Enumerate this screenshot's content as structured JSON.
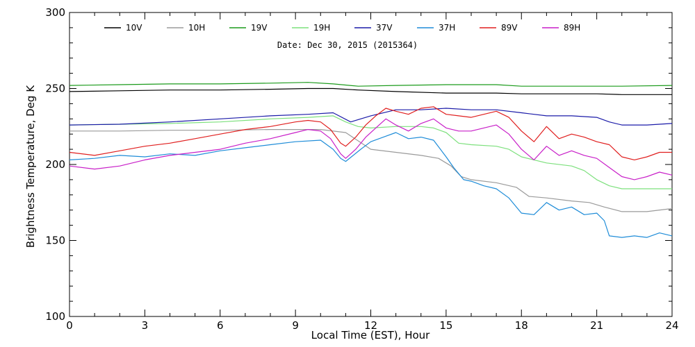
{
  "chart_data": {
    "type": "line",
    "title": "",
    "annotation": "Date: Dec 30, 2015 (2015364)",
    "xlabel": "Local Time (EST), Hour",
    "ylabel": "Brightness Temperature, Deg K",
    "xlim": [
      0,
      24
    ],
    "ylim": [
      100,
      300
    ],
    "x_ticks": [
      0,
      3,
      6,
      9,
      12,
      15,
      18,
      21,
      24
    ],
    "y_ticks": [
      100,
      150,
      200,
      250,
      300
    ],
    "grid": false,
    "legend_position": "top",
    "series": [
      {
        "name": "10V",
        "color": "#000000",
        "x": [
          0,
          2,
          4,
          6,
          8,
          9.5,
          10.5,
          11.5,
          13,
          15,
          17,
          18,
          19,
          21,
          22,
          24
        ],
        "y": [
          248,
          248.5,
          249,
          249,
          249.5,
          250,
          250,
          249,
          248,
          247,
          247,
          246.5,
          246.5,
          246.5,
          246,
          246
        ]
      },
      {
        "name": "10H",
        "color": "#9a9a9a",
        "x": [
          0,
          2,
          4,
          6,
          8,
          10,
          11,
          12,
          13,
          14,
          14.7,
          15.2,
          15.6,
          16,
          17,
          17.8,
          18.3,
          19,
          20,
          20.7,
          21.3,
          22,
          23,
          24
        ],
        "y": [
          222,
          222,
          222.5,
          222.5,
          223,
          223,
          221,
          210,
          208,
          206,
          204,
          199,
          192,
          190,
          188,
          185,
          179,
          178,
          176,
          175,
          172,
          169,
          169,
          171
        ]
      },
      {
        "name": "19V",
        "color": "#1a9a1a",
        "x": [
          0,
          2,
          4,
          6,
          8,
          9.5,
          10.5,
          11.5,
          13,
          15,
          17,
          18,
          19,
          21,
          22,
          24
        ],
        "y": [
          252,
          252.5,
          253,
          253,
          253.5,
          254,
          253,
          251.5,
          252,
          252.5,
          252.5,
          251.5,
          251.5,
          251.5,
          251.5,
          252
        ]
      },
      {
        "name": "19H",
        "color": "#7ce07c",
        "x": [
          0,
          2,
          4,
          6,
          8,
          9.5,
          10.5,
          11,
          11.5,
          12,
          13,
          14,
          14.5,
          15,
          15.5,
          16,
          17,
          17.5,
          18,
          19,
          20,
          20.5,
          21,
          21.5,
          22,
          23,
          24
        ],
        "y": [
          226,
          226.5,
          227,
          228,
          230,
          231,
          232,
          228,
          225,
          224,
          225,
          225,
          224,
          221,
          214,
          213,
          212,
          210,
          205,
          201,
          199,
          196,
          190,
          186,
          184,
          184,
          184
        ]
      },
      {
        "name": "37V",
        "color": "#1a1aa8",
        "x": [
          0,
          2,
          4,
          6,
          8,
          9.5,
          10.5,
          11.2,
          12,
          13,
          14,
          15,
          16,
          17,
          18,
          19,
          20,
          21,
          21.5,
          22,
          23,
          24
        ],
        "y": [
          226,
          226.5,
          228,
          230,
          232,
          233,
          234,
          228,
          232,
          236,
          236,
          237,
          236,
          236,
          234,
          232,
          232,
          231,
          228,
          226,
          226,
          227
        ]
      },
      {
        "name": "37H",
        "color": "#1e8cd8",
        "x": [
          0,
          1,
          2,
          3,
          4,
          5,
          6,
          7,
          8,
          9,
          10,
          10.5,
          10.8,
          11,
          11.3,
          11.6,
          12,
          12.5,
          13,
          13.5,
          14,
          14.5,
          15,
          15.3,
          15.7,
          16,
          16.5,
          17,
          17.5,
          18,
          18.5,
          19,
          19.5,
          20,
          20.5,
          21,
          21.3,
          21.5,
          22,
          22.5,
          23,
          23.5,
          24
        ],
        "y": [
          203,
          204,
          206,
          205,
          207,
          206,
          209,
          211,
          213,
          215,
          216,
          210,
          204,
          202,
          206,
          210,
          215,
          218,
          221,
          217,
          218,
          216,
          205,
          198,
          190,
          189,
          186,
          184,
          178,
          168,
          167,
          175,
          170,
          172,
          167,
          168,
          163,
          153,
          152,
          153,
          152,
          155,
          153
        ]
      },
      {
        "name": "89V",
        "color": "#e01e1e",
        "x": [
          0,
          1,
          2,
          3,
          4,
          5,
          6,
          7,
          8,
          9,
          9.5,
          10,
          10.4,
          10.8,
          11,
          11.4,
          11.8,
          12.2,
          12.6,
          13,
          13.5,
          14,
          14.5,
          15,
          15.5,
          16,
          16.5,
          17,
          17.5,
          18,
          18.5,
          19,
          19.5,
          20,
          20.5,
          21,
          21.5,
          22,
          22.5,
          23,
          23.5,
          24
        ],
        "y": [
          208,
          206,
          209,
          212,
          214,
          217,
          220,
          223,
          225,
          228,
          229,
          228,
          223,
          214,
          212,
          218,
          226,
          232,
          237,
          235,
          233,
          237,
          238,
          233,
          232,
          231,
          233,
          235,
          231,
          222,
          215,
          225,
          217,
          220,
          218,
          215,
          213,
          205,
          203,
          205,
          208,
          208
        ]
      },
      {
        "name": "89H",
        "color": "#c81ec8",
        "x": [
          0,
          1,
          2,
          3,
          4,
          5,
          6,
          7,
          8,
          9,
          9.5,
          10,
          10.4,
          10.8,
          11,
          11.4,
          11.8,
          12.2,
          12.6,
          13,
          13.5,
          14,
          14.5,
          15,
          15.5,
          16,
          16.5,
          17,
          17.5,
          18,
          18.5,
          19,
          19.5,
          20,
          20.5,
          21,
          21.5,
          22,
          22.5,
          23,
          23.5,
          24
        ],
        "y": [
          199,
          197,
          199,
          203,
          206,
          208,
          210,
          214,
          217,
          221,
          223,
          222,
          217,
          207,
          204,
          210,
          218,
          224,
          230,
          226,
          222,
          227,
          230,
          224,
          222,
          222,
          224,
          226,
          220,
          210,
          203,
          212,
          206,
          209,
          206,
          204,
          198,
          192,
          190,
          192,
          195,
          193
        ]
      }
    ]
  }
}
